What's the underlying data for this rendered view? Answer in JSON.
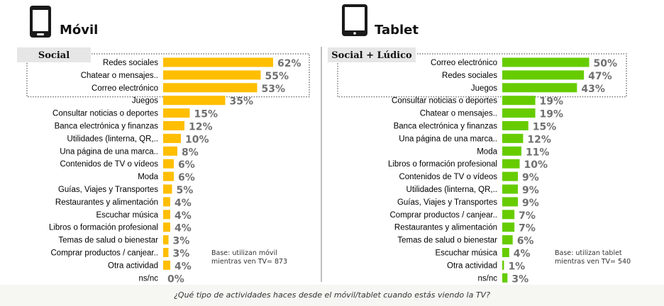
{
  "colors": {
    "movil_bar": "#ffbe00",
    "tablet_bar": "#66cc00",
    "value_text": "#707070",
    "label_text": "#000000",
    "tag_bg": "#e6e6e6"
  },
  "question": "¿Qué tipo de actividades haces desde el móvil/tablet cuando estás viendo la TV?",
  "chart_data": [
    {
      "type": "bar",
      "orientation": "horizontal",
      "title": "Móvil",
      "icon": "smartphone-icon",
      "group_label": "Social",
      "group_size": 3,
      "base_note": [
        "Base: utilizan móvil",
        "mientras ven TV= 873"
      ],
      "categories": [
        "Redes sociales",
        "Chatear o mensajes..",
        "Correo electrónico",
        "Juegos",
        "Consultar noticias o deportes",
        "Banca electrónica y finanzas",
        "Utilidades (linterna, QR,..",
        "Una página de una marca..",
        "Contenidos de TV o vídeos",
        "Moda",
        "Guías, Viajes y Transportes",
        "Restaurantes y alimentación",
        "Escuchar música",
        "Libros o formación profesional",
        "Temas de salud o bienestar",
        "Comprar productos / canjear..",
        "Otra actividad",
        "ns/nc"
      ],
      "values": [
        62,
        55,
        53,
        35,
        15,
        12,
        10,
        8,
        6,
        6,
        5,
        4,
        4,
        4,
        3,
        3,
        4,
        0
      ],
      "unit": "%"
    },
    {
      "type": "bar",
      "orientation": "horizontal",
      "title": "Tablet",
      "icon": "tablet-icon",
      "group_label": "Social + Lúdico",
      "group_size": 3,
      "base_note": [
        "Base: utilizan tablet",
        "mientras ven TV= 540"
      ],
      "categories": [
        "Correo electrónico",
        "Redes sociales",
        "Juegos",
        "Consultar noticias o deportes",
        "Chatear o mensajes..",
        "Banca electrónica y finanzas",
        "Una página de una marca..",
        "Moda",
        "Libros o formación profesional",
        "Contenidos de TV o vídeos",
        "Utilidades (linterna, QR,..",
        "Guías, Viajes y Transportes",
        "Comprar productos / canjear..",
        "Restaurantes y alimentación",
        "Temas de salud o bienestar",
        "Escuchar música",
        "Otra actividad",
        "ns/nc"
      ],
      "values": [
        50,
        47,
        43,
        19,
        19,
        15,
        12,
        11,
        10,
        9,
        9,
        9,
        7,
        7,
        6,
        4,
        1,
        3
      ],
      "unit": "%"
    }
  ]
}
